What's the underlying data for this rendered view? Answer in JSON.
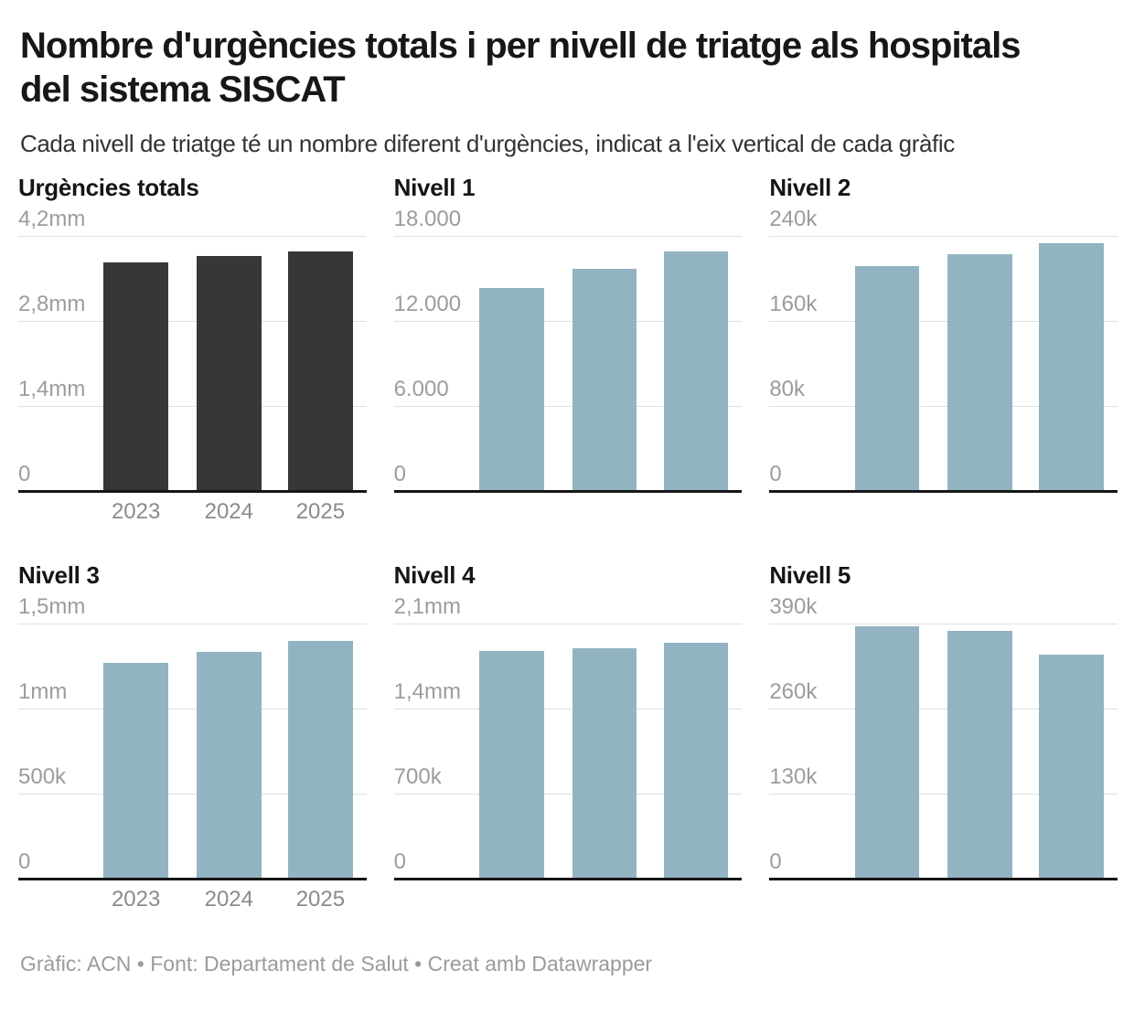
{
  "header": {
    "title_line1": "Nombre d'urgències totals i per nivell de triatge als hospitals",
    "title_line2": "del sistema SISCAT",
    "subtitle": "Cada nivell de triatge té un nombre diferent d'urgències, indicat a l'eix vertical de cada gràfic"
  },
  "footer": {
    "credit": "Gràfic: ACN • Font: Departament de Salut • Creat amb Datawrapper"
  },
  "colors": {
    "dark_bar": "#373737",
    "blue_bar": "#92b4c2",
    "gridline": "#e0e0e0",
    "baseline": "#161616"
  },
  "chart_data": [
    {
      "type": "bar",
      "title": "Urgències totals",
      "categories": [
        "2023",
        "2024",
        "2025"
      ],
      "values": [
        3760000,
        3870000,
        3940000
      ],
      "ylim": [
        0,
        4200000
      ],
      "yticks": [
        {
          "value": 4200000,
          "label": "4,2mm"
        },
        {
          "value": 2800000,
          "label": "2,8mm"
        },
        {
          "value": 1400000,
          "label": "1,4mm"
        },
        {
          "value": 0,
          "label": "0"
        }
      ],
      "bar_color": "#373737",
      "show_x_labels": true,
      "grid": true,
      "legend": "none"
    },
    {
      "type": "bar",
      "title": "Nivell 1",
      "categories": [
        "2023",
        "2024",
        "2025"
      ],
      "values": [
        14300,
        15700,
        16900
      ],
      "ylim": [
        0,
        18000
      ],
      "yticks": [
        {
          "value": 18000,
          "label": "18.000"
        },
        {
          "value": 12000,
          "label": "12.000"
        },
        {
          "value": 6000,
          "label": "6.000"
        },
        {
          "value": 0,
          "label": "0"
        }
      ],
      "bar_color": "#92b4c2",
      "show_x_labels": false,
      "grid": true,
      "legend": "none"
    },
    {
      "type": "bar",
      "title": "Nivell 2",
      "categories": [
        "2023",
        "2024",
        "2025"
      ],
      "values": [
        211500,
        223000,
        233000
      ],
      "ylim": [
        0,
        240000
      ],
      "yticks": [
        {
          "value": 240000,
          "label": "240k"
        },
        {
          "value": 160000,
          "label": "160k"
        },
        {
          "value": 80000,
          "label": "80k"
        },
        {
          "value": 0,
          "label": "0"
        }
      ],
      "bar_color": "#92b4c2",
      "show_x_labels": false,
      "grid": true,
      "legend": "none"
    },
    {
      "type": "bar",
      "title": "Nivell 3",
      "categories": [
        "2023",
        "2024",
        "2025"
      ],
      "values": [
        1270000,
        1335000,
        1400000
      ],
      "ylim": [
        0,
        1500000
      ],
      "yticks": [
        {
          "value": 1500000,
          "label": "1,5mm"
        },
        {
          "value": 1000000,
          "label": "1mm"
        },
        {
          "value": 500000,
          "label": "500k"
        },
        {
          "value": 0,
          "label": "0"
        }
      ],
      "bar_color": "#92b4c2",
      "show_x_labels": true,
      "grid": true,
      "legend": "none"
    },
    {
      "type": "bar",
      "title": "Nivell 4",
      "categories": [
        "2023",
        "2024",
        "2025"
      ],
      "values": [
        1875000,
        1900000,
        1940000
      ],
      "ylim": [
        0,
        2100000
      ],
      "yticks": [
        {
          "value": 2100000,
          "label": "2,1mm"
        },
        {
          "value": 1400000,
          "label": "1,4mm"
        },
        {
          "value": 700000,
          "label": "700k"
        },
        {
          "value": 0,
          "label": "0"
        }
      ],
      "bar_color": "#92b4c2",
      "show_x_labels": false,
      "grid": true,
      "legend": "none"
    },
    {
      "type": "bar",
      "title": "Nivell 5",
      "categories": [
        "2023",
        "2024",
        "2025"
      ],
      "values": [
        386000,
        379000,
        343000
      ],
      "ylim": [
        0,
        390000
      ],
      "yticks": [
        {
          "value": 390000,
          "label": "390k"
        },
        {
          "value": 260000,
          "label": "260k"
        },
        {
          "value": 130000,
          "label": "130k"
        },
        {
          "value": 0,
          "label": "0"
        }
      ],
      "bar_color": "#92b4c2",
      "show_x_labels": false,
      "grid": true,
      "legend": "none"
    }
  ]
}
